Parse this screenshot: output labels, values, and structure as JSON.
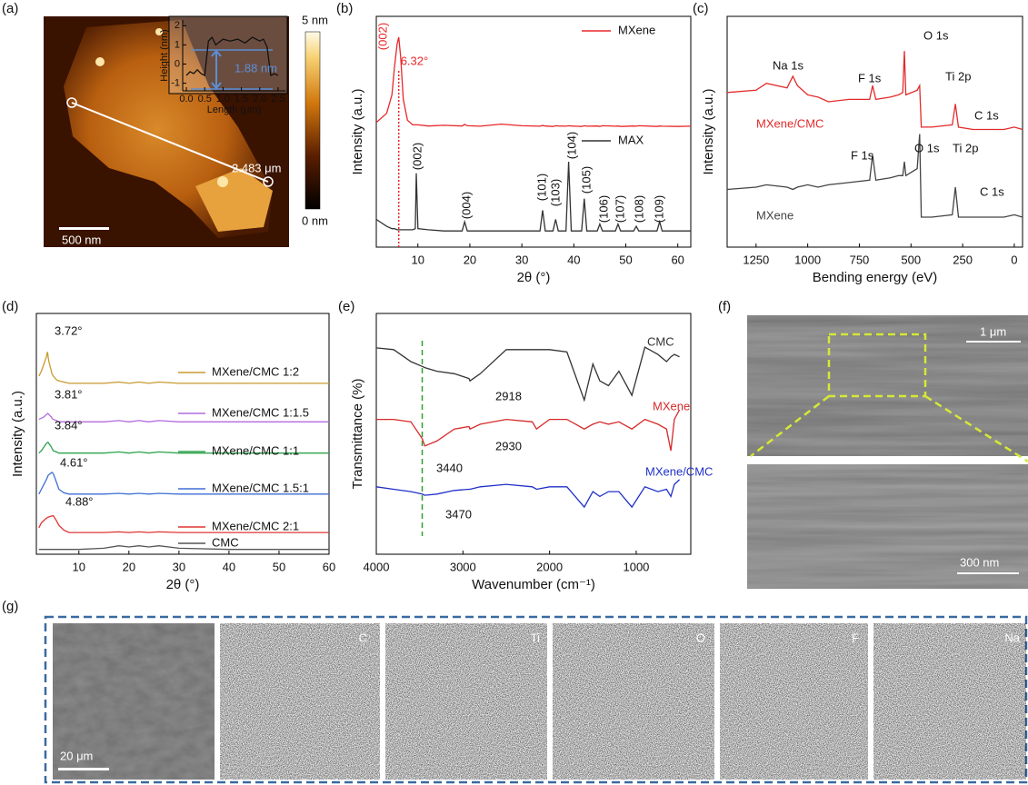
{
  "panel_labels": [
    "(a)",
    "(b)",
    "(c)",
    "(d)",
    "(e)",
    "(f)",
    "(g)"
  ],
  "afm": {
    "colorbar_max": "5 nm",
    "colorbar_min": "0 nm",
    "scale_bar": "500 nm",
    "line_length": "2.483 μm"
  },
  "sem": {
    "top_scale": "1 μm",
    "bottom_scale": "300 nm"
  },
  "eds": {
    "scale_bar": "20 μm",
    "elements": [
      "C",
      "Ti",
      "O",
      "F",
      "Na"
    ]
  },
  "chart_data": [
    {
      "type": "line",
      "xlabel": "Length (μm)",
      "ylabel": "Height (nm)",
      "xlim": [
        -0.1,
        2.7
      ],
      "ylim": [
        -1.4,
        2.3
      ],
      "xticks": [
        {
          "value": 0,
          "label": "0.0"
        },
        {
          "value": 0.5,
          "label": "0.5"
        },
        {
          "value": 1,
          "label": "1.0"
        },
        {
          "value": 1.5,
          "label": "1.5"
        },
        {
          "value": 2,
          "label": "2.0"
        },
        {
          "value": 2.5,
          "label": "2.5"
        }
      ],
      "yticks": [
        -1,
        0,
        1,
        2
      ],
      "annotations": [
        "1.88 nm"
      ],
      "x": [
        0,
        0.1,
        0.2,
        0.3,
        0.4,
        0.5,
        0.6,
        0.7,
        0.8,
        1.0,
        1.2,
        1.4,
        1.6,
        1.8,
        2.0,
        2.1,
        2.2,
        2.3,
        2.4,
        2.5
      ],
      "series": [
        {
          "color": "#111111",
          "values": [
            -0.6,
            -0.4,
            -0.5,
            -0.3,
            -0.5,
            -0.6,
            1.2,
            1.4,
            1.0,
            1.3,
            1.2,
            1.3,
            1.1,
            1.4,
            1.2,
            1.3,
            0.9,
            -0.6,
            -0.5,
            -0.6
          ]
        }
      ]
    },
    {
      "type": "line",
      "xlabel": "2θ (°)",
      "ylabel": "Intensity (a.u.)",
      "xlim": [
        2,
        62.5
      ],
      "ylim": [
        0,
        100
      ],
      "xticks": [
        10,
        20,
        30,
        40,
        50,
        60
      ],
      "reference_line": {
        "value": 6.32,
        "label": "6.32°"
      },
      "annotations": [
        "(002)",
        "(002)",
        "(004)",
        "(101)",
        "(103)",
        "(104)",
        "(105)",
        "(106)",
        "(107)",
        "(108)",
        "(109)"
      ],
      "x": [
        2,
        4,
        5,
        5.5,
        6,
        6.32,
        6.7,
        7.2,
        8,
        9,
        9.5,
        9.7,
        10,
        12,
        15,
        18.5,
        19,
        19.5,
        22,
        26,
        30,
        33.5,
        34,
        34.5,
        36,
        36.5,
        37,
        38.5,
        39,
        39.5,
        41.5,
        42,
        42.5,
        44.5,
        45,
        45.5,
        48,
        48.5,
        49,
        51.5,
        52,
        52.5,
        56,
        56.5,
        57,
        60,
        62.5
      ],
      "series": [
        {
          "name": "MXene",
          "color": "#e8282a",
          "values": [
            54,
            58,
            66,
            78,
            88,
            91,
            82,
            64,
            55,
            53,
            53,
            53,
            53,
            52.5,
            52.8,
            52.5,
            53.2,
            52.6,
            52.4,
            53.3,
            52.6,
            52.4,
            52.7,
            52.5,
            52.3,
            52.6,
            52.5,
            52.4,
            52.6,
            52.5,
            52.3,
            52.6,
            52.4,
            52.5,
            52.3,
            52.6,
            52.4,
            52.5,
            52.3,
            52.5,
            52.4,
            52.6,
            52.3,
            52.5,
            52.4,
            52.3,
            52.4
          ]
        },
        {
          "name": "MAX",
          "color": "#333333",
          "values": [
            12,
            9,
            8,
            8,
            7.5,
            7.5,
            7.5,
            7.5,
            7.5,
            7.5,
            8,
            32,
            8,
            7.5,
            7,
            7,
            11,
            7,
            7,
            7,
            7,
            7,
            16,
            7,
            7,
            12,
            7,
            7,
            37,
            7,
            7,
            21,
            7,
            7,
            10,
            7,
            7,
            10,
            7,
            7,
            9,
            7,
            7,
            11,
            7,
            7,
            7
          ]
        }
      ]
    },
    {
      "type": "line",
      "xlabel": "Bending energy (eV)",
      "ylabel": "Intensity (a.u.)",
      "xlim": [
        1390,
        -40
      ],
      "ylim": [
        0,
        100
      ],
      "xticks": [
        1250,
        1000,
        750,
        500,
        250,
        0
      ],
      "annotations": [
        "Na 1s",
        "F 1s",
        "O 1s",
        "Ti 2p",
        "C 1s",
        "F 1s",
        "O 1s",
        "Ti 2p",
        "C 1s"
      ],
      "x": [
        1390,
        1250,
        1200,
        1100,
        1072,
        1050,
        1000,
        950,
        900,
        800,
        700,
        686,
        670,
        600,
        560,
        540,
        532,
        525,
        470,
        458,
        450,
        400,
        300,
        285,
        270,
        200,
        150,
        100,
        50,
        0,
        -40
      ],
      "series": [
        {
          "name": "MXene/CMC",
          "color": "#e32b2b",
          "values": [
            67,
            68,
            71,
            69,
            74,
            70,
            66,
            65,
            63,
            64,
            64,
            70,
            64,
            65,
            66,
            67,
            85,
            66,
            68,
            70,
            52,
            52,
            53,
            62,
            52,
            51,
            51,
            51,
            51,
            52,
            51
          ]
        },
        {
          "name": "MXene",
          "color": "#444444",
          "values": [
            25,
            26,
            27,
            26,
            25,
            26,
            27,
            26,
            27,
            28,
            29,
            40,
            29,
            30,
            31,
            31,
            37,
            31,
            34,
            49,
            13,
            13,
            14,
            26,
            13,
            13,
            13,
            13,
            13,
            14,
            13
          ]
        }
      ]
    },
    {
      "type": "line",
      "xlabel": "2θ (°)",
      "ylabel": "Intensity (a.u.)",
      "xlim": [
        1.5,
        60
      ],
      "ylim": [
        0,
        100
      ],
      "xticks": [
        10,
        20,
        30,
        40,
        50,
        60
      ],
      "annotations": [
        "3.72°",
        "3.81°",
        "3.84°",
        "4.61°",
        "4.88°"
      ],
      "x": [
        2,
        2.5,
        3,
        3.5,
        3.72,
        3.81,
        3.84,
        4,
        4.5,
        4.61,
        4.88,
        5.5,
        6,
        7,
        8,
        10,
        15,
        18,
        20,
        22,
        24,
        26,
        30,
        40,
        50,
        60
      ],
      "series": [
        {
          "name": "MXene/CMC 1:2",
          "color": "#c99a2e",
          "values": [
            74,
            76,
            79,
            82,
            84,
            83,
            82,
            80,
            76,
            75,
            74,
            72.5,
            72,
            71.5,
            71,
            71,
            71,
            71.5,
            71,
            71.5,
            71,
            71.5,
            71,
            71,
            71,
            71
          ]
        },
        {
          "name": "MXene/CMC 1:1.5",
          "color": "#b26ae0",
          "values": [
            56,
            56.5,
            57,
            58,
            58.3,
            58.5,
            58.4,
            58,
            57,
            56.5,
            56,
            55.5,
            55,
            55,
            55,
            55,
            55,
            55.5,
            55,
            55.5,
            55,
            55.5,
            55,
            55,
            55,
            55
          ]
        },
        {
          "name": "MXene/CMC 1:1",
          "color": "#2ca44c",
          "values": [
            42,
            43,
            44.5,
            46,
            46.4,
            46.5,
            46.5,
            46,
            44.5,
            44,
            43,
            42.5,
            42,
            42,
            42,
            42,
            42,
            42.5,
            42,
            42.5,
            42,
            42.5,
            42,
            42,
            42,
            42
          ]
        },
        {
          "name": "MXene/CMC 1.5:1",
          "color": "#3f6fd6",
          "values": [
            25,
            27,
            29,
            31,
            32,
            32.5,
            32.7,
            33,
            33.8,
            34,
            33.5,
            30,
            27,
            25.5,
            25,
            25,
            25,
            25.3,
            25,
            25.3,
            25,
            25.3,
            25,
            25,
            25,
            25
          ]
        },
        {
          "name": "MXene/CMC 2:1",
          "color": "#e03434",
          "values": [
            11,
            13,
            14,
            15,
            15.2,
            15.3,
            15.4,
            15.5,
            15.8,
            15.9,
            16,
            14,
            12,
            10,
            9,
            9,
            9,
            9.3,
            9,
            9.3,
            9,
            9.3,
            9,
            9,
            9,
            9
          ]
        },
        {
          "name": "CMC",
          "color": "#555555",
          "values": [
            2,
            2,
            2,
            2,
            2,
            2,
            2,
            2,
            2,
            2,
            2,
            2,
            2,
            2,
            2,
            2,
            2.5,
            3.5,
            3,
            3.5,
            3,
            3.5,
            2.5,
            2,
            2,
            2
          ]
        }
      ]
    },
    {
      "type": "line",
      "xlabel": "Wavenumber (cm⁻¹)",
      "ylabel": "Transmittance (%)",
      "xlim": [
        4000,
        370
      ],
      "ylim": [
        0,
        100
      ],
      "xticks": [
        4000,
        3000,
        2000,
        1000
      ],
      "annotations": [
        "2918",
        "2930",
        "3440",
        "3470"
      ],
      "x": [
        4000,
        3800,
        3600,
        3470,
        3440,
        3300,
        3100,
        2930,
        2918,
        2800,
        2500,
        2200,
        2150,
        2000,
        1800,
        1600,
        1500,
        1420,
        1320,
        1200,
        1050,
        900,
        750,
        650,
        600,
        560,
        500
      ],
      "series": [
        {
          "name": "CMC",
          "color": "#333333",
          "values": [
            85.7,
            85,
            80,
            78,
            77.5,
            76,
            75,
            73,
            72,
            75,
            85,
            85,
            85,
            85,
            84,
            64,
            79,
            72,
            70,
            76,
            66,
            86,
            83,
            80,
            82,
            83,
            82
          ]
        },
        {
          "name": "MXene",
          "color": "#d62a2a",
          "values": [
            56,
            56,
            55,
            48,
            45,
            47,
            52,
            53,
            52,
            54,
            56,
            55,
            52,
            56,
            56,
            52,
            54,
            55,
            54,
            55,
            52,
            56,
            54,
            52,
            43,
            56,
            60
          ]
        },
        {
          "name": "MXene/CMC",
          "color": "#2030c8",
          "values": [
            28,
            27,
            26,
            25,
            24.5,
            25,
            26.5,
            27,
            27,
            28,
            29,
            28,
            27,
            28,
            28,
            19.6,
            26,
            24,
            26,
            26,
            19.6,
            28,
            26,
            27,
            24,
            29,
            31
          ]
        }
      ]
    }
  ]
}
